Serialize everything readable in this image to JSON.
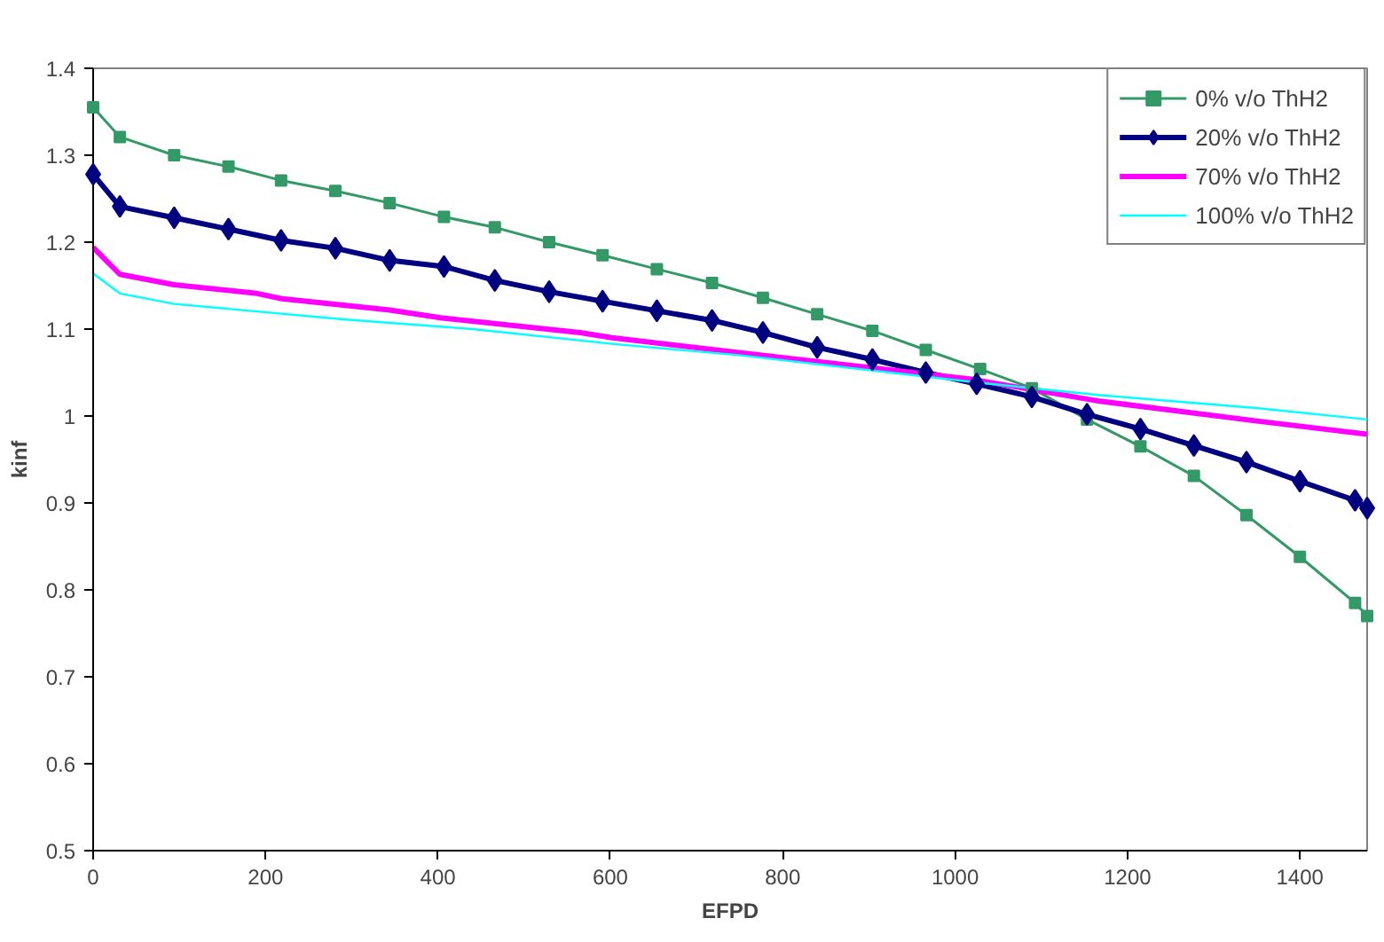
{
  "chart_data": {
    "type": "line",
    "xlabel": "EFPD",
    "ylabel": "kinf",
    "xlim": [
      0,
      1478
    ],
    "ylim": [
      0.5,
      1.4
    ],
    "xticks": [
      0,
      200,
      400,
      600,
      800,
      1000,
      1200,
      1400
    ],
    "yticks": [
      {
        "value": 0.5,
        "label": "0.5"
      },
      {
        "value": 0.6,
        "label": "0.6"
      },
      {
        "value": 0.7,
        "label": "0.7"
      },
      {
        "value": 0.8,
        "label": "0.8"
      },
      {
        "value": 0.9,
        "label": "0.9"
      },
      {
        "value": 1,
        "label": "1"
      },
      {
        "value": 1.1,
        "label": "1.1"
      },
      {
        "value": 1.2,
        "label": "1.2"
      },
      {
        "value": 1.3,
        "label": "1.3"
      },
      {
        "value": 1.4,
        "label": "1.4"
      }
    ],
    "grid": false,
    "legend": "top right",
    "series": [
      {
        "name": "0% v/o ThH2",
        "color": "#339966",
        "marker": "square",
        "x": [
          0,
          31,
          94,
          157,
          218,
          281,
          344,
          407,
          466,
          529,
          591,
          654,
          718,
          777,
          840,
          904,
          966,
          1029,
          1089,
          1153,
          1215,
          1277,
          1338,
          1400,
          1464,
          1478
        ],
        "values": [
          1.355,
          1.321,
          1.3,
          1.287,
          1.271,
          1.259,
          1.245,
          1.229,
          1.217,
          1.2,
          1.185,
          1.169,
          1.153,
          1.136,
          1.117,
          1.098,
          1.076,
          1.054,
          1.032,
          0.996,
          0.965,
          0.931,
          0.886,
          0.838,
          0.785,
          0.77
        ]
      },
      {
        "name": "20% v/o ThH2",
        "color": "#000080",
        "marker": "diamond",
        "x": [
          0,
          31,
          94,
          157,
          218,
          281,
          344,
          407,
          466,
          529,
          591,
          654,
          718,
          777,
          840,
          904,
          966,
          1025,
          1089,
          1153,
          1215,
          1277,
          1338,
          1400,
          1464,
          1478
        ],
        "values": [
          1.278,
          1.241,
          1.228,
          1.215,
          1.202,
          1.193,
          1.179,
          1.172,
          1.156,
          1.143,
          1.132,
          1.121,
          1.11,
          1.096,
          1.079,
          1.065,
          1.05,
          1.037,
          1.022,
          1.002,
          0.985,
          0.966,
          0.947,
          0.925,
          0.903,
          0.894
        ]
      },
      {
        "name": "70% v/o ThH2",
        "color": "#ff00ff",
        "marker": "none",
        "x": [
          0,
          31,
          94,
          190,
          219,
          344,
          403,
          565,
          602,
          749,
          1021,
          1168,
          1352,
          1478
        ],
        "values": [
          1.194,
          1.163,
          1.151,
          1.141,
          1.135,
          1.122,
          1.113,
          1.096,
          1.09,
          1.073,
          1.042,
          1.017,
          0.994,
          0.979
        ]
      },
      {
        "name": "100% v/o ThH2",
        "color": "#00ffff",
        "marker": "none",
        "x": [
          0,
          31,
          94,
          293,
          440,
          602,
          749,
          1021,
          1168,
          1352,
          1478
        ],
        "values": [
          1.164,
          1.141,
          1.129,
          1.111,
          1.1,
          1.083,
          1.07,
          1.039,
          1.024,
          1.009,
          0.996
        ]
      }
    ]
  }
}
